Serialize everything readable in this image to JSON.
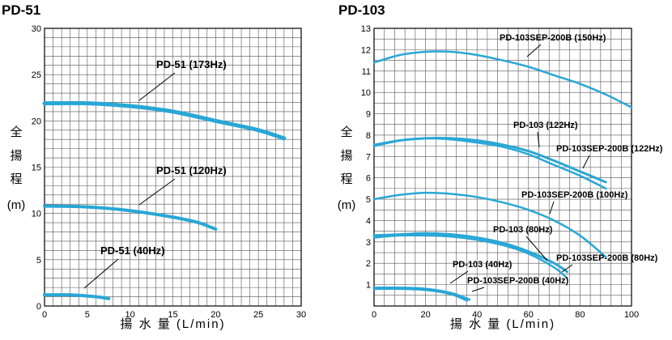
{
  "chart_data": [
    {
      "type": "line",
      "title": "PD-51",
      "xlabel": "揚 水 量 (L/min)",
      "ylabel": [
        "全",
        "揚",
        "程",
        "(m)"
      ],
      "xlim": [
        0,
        30
      ],
      "ylim": [
        0,
        30
      ],
      "xticks": [
        0,
        5,
        10,
        15,
        20,
        25,
        30
      ],
      "yticks": [
        5,
        10,
        15,
        20,
        25,
        30
      ],
      "grid": true,
      "series": [
        {
          "name": "PD-51 (173Hz)",
          "x": [
            0,
            5,
            10,
            15,
            20,
            25,
            28
          ],
          "y": [
            21.9,
            21.9,
            21.6,
            21.0,
            20.0,
            19.0,
            18.1
          ]
        },
        {
          "name": "PD-51 (120Hz)",
          "x": [
            0,
            5,
            10,
            15,
            18,
            20
          ],
          "y": [
            10.8,
            10.7,
            10.3,
            9.6,
            9.0,
            8.3
          ]
        },
        {
          "name": "PD-51 (40Hz)",
          "x": [
            0,
            3,
            6,
            7.5
          ],
          "y": [
            1.2,
            1.2,
            1.0,
            0.8
          ]
        }
      ]
    },
    {
      "type": "line",
      "title": "PD-103",
      "xlabel": "揚 水 量 (L/min)",
      "ylabel": [
        "全",
        "揚",
        "程",
        "(m)"
      ],
      "xlim": [
        0,
        100
      ],
      "ylim": [
        0,
        13
      ],
      "xticks": [
        0,
        20,
        40,
        60,
        80,
        100
      ],
      "yticks": [
        1,
        2,
        3,
        4,
        5,
        6,
        7,
        8,
        9,
        10,
        11,
        12,
        13
      ],
      "grid": true,
      "series": [
        {
          "name": "PD-103SEP-200B (150Hz)",
          "x": [
            0,
            10,
            20,
            30,
            40,
            50,
            60,
            70,
            80,
            90,
            100
          ],
          "y": [
            11.4,
            11.75,
            11.9,
            11.9,
            11.75,
            11.5,
            11.2,
            10.8,
            10.4,
            9.9,
            9.3
          ]
        },
        {
          "name": "PD-103 (122Hz)",
          "x": [
            0,
            10,
            20,
            30,
            40,
            50,
            60,
            70,
            80,
            90
          ],
          "y": [
            7.5,
            7.75,
            7.85,
            7.85,
            7.75,
            7.55,
            7.25,
            6.8,
            6.3,
            5.8
          ]
        },
        {
          "name": "PD-103SEP-200B (122Hz)",
          "x": [
            0,
            10,
            20,
            30,
            40,
            50,
            60,
            70,
            80,
            90
          ],
          "y": [
            7.55,
            7.75,
            7.85,
            7.8,
            7.65,
            7.45,
            7.1,
            6.6,
            6.1,
            5.5
          ]
        },
        {
          "name": "PD-103SEP-200B (100Hz)",
          "x": [
            0,
            10,
            20,
            30,
            40,
            50,
            60,
            70,
            80,
            90
          ],
          "y": [
            5.0,
            5.2,
            5.3,
            5.25,
            5.1,
            4.85,
            4.5,
            4.0,
            3.3,
            2.3
          ]
        },
        {
          "name": "PD-103 (80Hz)",
          "x": [
            0,
            10,
            20,
            30,
            40,
            50,
            60,
            70,
            75
          ],
          "y": [
            3.3,
            3.35,
            3.4,
            3.35,
            3.2,
            2.95,
            2.55,
            2.0,
            1.6
          ]
        },
        {
          "name": "PD-103SEP-200B (80Hz)",
          "x": [
            0,
            10,
            20,
            30,
            40,
            50,
            60,
            70,
            75
          ],
          "y": [
            3.2,
            3.3,
            3.3,
            3.25,
            3.1,
            2.85,
            2.45,
            1.8,
            1.3
          ]
        },
        {
          "name": "PD-103 (40Hz)",
          "x": [
            0,
            10,
            20,
            30,
            37
          ],
          "y": [
            0.85,
            0.85,
            0.8,
            0.6,
            0.3
          ]
        },
        {
          "name": "PD-103SEP-200B (40Hz)",
          "x": [
            0,
            10,
            20,
            30,
            36
          ],
          "y": [
            0.8,
            0.8,
            0.75,
            0.55,
            0.25
          ]
        }
      ]
    }
  ]
}
